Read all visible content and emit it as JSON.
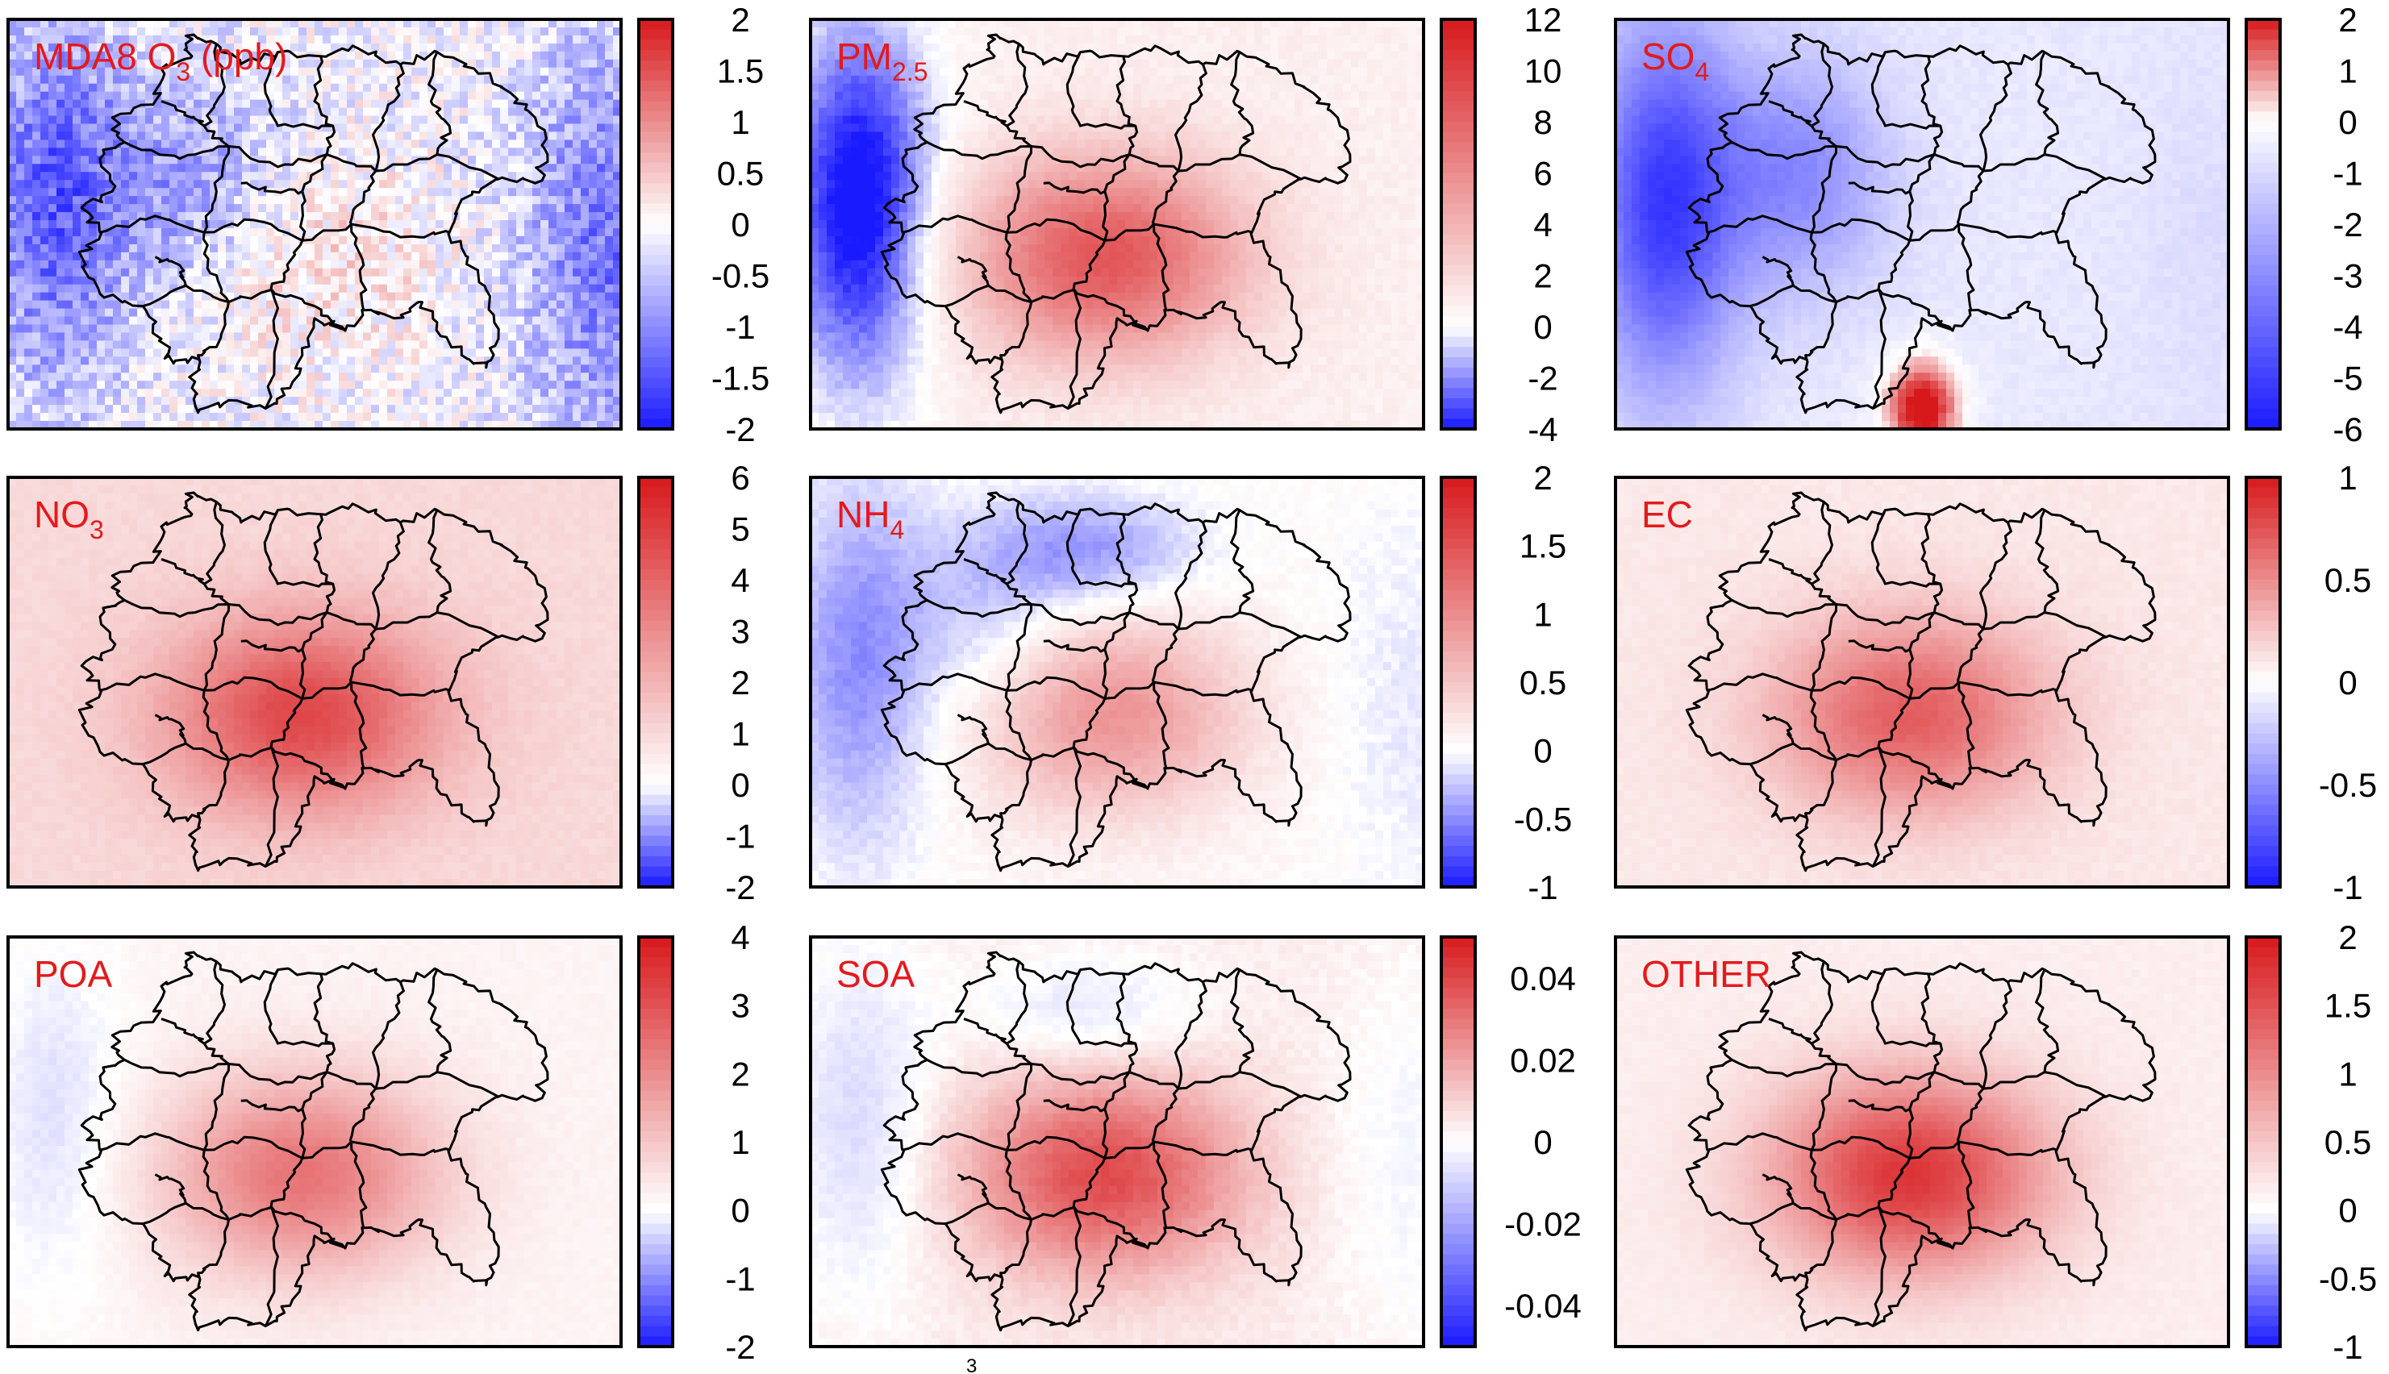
{
  "panels": [
    {
      "id": "mda8-o3",
      "title": "MDA8 O",
      "sub": "3",
      "suffix": " (ppb)",
      "ticks": [
        "2",
        "1.5",
        "1",
        "0.5",
        "0",
        "-0.5",
        "-1",
        "-1.5",
        "-2"
      ],
      "tick_values": [
        2,
        1.5,
        1,
        0.5,
        0,
        -0.5,
        -1,
        -1.5,
        -2
      ],
      "range": [
        -2,
        2
      ],
      "field": {
        "base": -0.1,
        "mode": "mixed",
        "west_blue": 1.3,
        "east_blue": 1.1,
        "center_red": 0.4,
        "noise": 0.9
      }
    },
    {
      "id": "pm25",
      "title": "PM",
      "sub": "2.5",
      "suffix": "",
      "ticks": [
        "12",
        "10",
        "8",
        "6",
        "4",
        "2",
        "0",
        "-2",
        "-4"
      ],
      "tick_values": [
        12,
        10,
        8,
        6,
        4,
        2,
        0,
        -2,
        -4
      ],
      "range": [
        -4,
        12
      ],
      "field": {
        "base": 0.8,
        "mode": "hot",
        "west_blue": 5.5,
        "east_blue": 0.0,
        "center_red": 8.0,
        "noise": 0.6
      }
    },
    {
      "id": "so4",
      "title": "SO",
      "sub": "4",
      "suffix": "",
      "ticks": [
        "2",
        "1",
        "0",
        "-1",
        "-2",
        "-3",
        "-4",
        "-5",
        "-6"
      ],
      "tick_values": [
        2,
        1,
        0,
        -1,
        -2,
        -3,
        -4,
        -5,
        -6
      ],
      "range": [
        -6,
        2
      ],
      "field": {
        "base": -0.6,
        "mode": "cold",
        "west_blue": 4.5,
        "east_blue": 0.3,
        "center_red": 0.0,
        "south_red": 3.0,
        "noise": 0.3
      }
    },
    {
      "id": "no3",
      "title": "NO",
      "sub": "3",
      "suffix": "",
      "ticks": [
        "6",
        "5",
        "4",
        "3",
        "2",
        "1",
        "0",
        "-1",
        "-2"
      ],
      "tick_values": [
        6,
        5,
        4,
        3,
        2,
        1,
        0,
        -1,
        -2
      ],
      "range": [
        -2,
        6
      ],
      "field": {
        "base": 1.0,
        "mode": "hot",
        "west_blue": 0.0,
        "east_blue": 0.0,
        "center_red": 3.8,
        "noise": 0.25
      }
    },
    {
      "id": "nh4",
      "title": "NH",
      "sub": "4",
      "suffix": "",
      "ticks": [
        "2",
        "1.5",
        "1",
        "0.5",
        "0",
        "-0.5",
        "-1"
      ],
      "tick_values": [
        2,
        1.5,
        1,
        0.5,
        0,
        -0.5,
        -1
      ],
      "range": [
        -1,
        2
      ],
      "field": {
        "base": 0.05,
        "mode": "mixed",
        "west_blue": 0.55,
        "east_blue": 0.15,
        "center_red": 0.9,
        "north_blue": 0.5,
        "noise": 0.1
      }
    },
    {
      "id": "ec",
      "title": "EC",
      "sub": "",
      "suffix": "",
      "ticks": [
        "1",
        "0.5",
        "0",
        "-0.5",
        "-1"
      ],
      "tick_values": [
        1,
        0.5,
        0,
        -0.5,
        -1
      ],
      "range": [
        -1,
        1
      ],
      "field": {
        "base": 0.1,
        "mode": "hot",
        "west_blue": 0.0,
        "east_blue": 0.0,
        "center_red": 0.6,
        "noise": 0.04
      }
    },
    {
      "id": "poa",
      "title": "POA",
      "sub": "",
      "suffix": "",
      "ticks": [
        "4",
        "3",
        "2",
        "1",
        "0",
        "-1",
        "-2"
      ],
      "tick_values": [
        4,
        3,
        2,
        1,
        0,
        -1,
        -2
      ],
      "range": [
        -2,
        4
      ],
      "field": {
        "base": 0.2,
        "mode": "hot",
        "west_blue": 0.5,
        "east_blue": 0.0,
        "center_red": 2.2,
        "noise": 0.12
      }
    },
    {
      "id": "soa",
      "title": "SOA",
      "sub": "",
      "suffix": "",
      "ticks": [
        "0.04",
        "0.02",
        "0",
        "-0.02",
        "-0.04"
      ],
      "tick_values": [
        0.04,
        0.02,
        0,
        -0.02,
        -0.04
      ],
      "range": [
        -0.05,
        0.05
      ],
      "field": {
        "base": 0.004,
        "mode": "hot",
        "west_blue": 0.012,
        "east_blue": 0.006,
        "center_red": 0.035,
        "north_blue": 0.01,
        "noise": 0.003
      }
    },
    {
      "id": "other",
      "title": "OTHER",
      "sub": "",
      "suffix": "",
      "ticks": [
        "2",
        "1.5",
        "1",
        "0.5",
        "0",
        "-0.5",
        "-1"
      ],
      "tick_values": [
        2,
        1.5,
        1,
        0.5,
        0,
        -0.5,
        -1
      ],
      "range": [
        -1,
        2
      ],
      "field": {
        "base": 0.15,
        "mode": "hot",
        "west_blue": 0.0,
        "east_blue": 0.0,
        "center_red": 1.6,
        "noise": 0.06
      }
    }
  ],
  "colors": {
    "title": "#e31a1c",
    "low": "#1a1aff",
    "mid": "#ffffff",
    "high": "#d7191c",
    "outline": "#000000"
  },
  "footnote": "3"
}
